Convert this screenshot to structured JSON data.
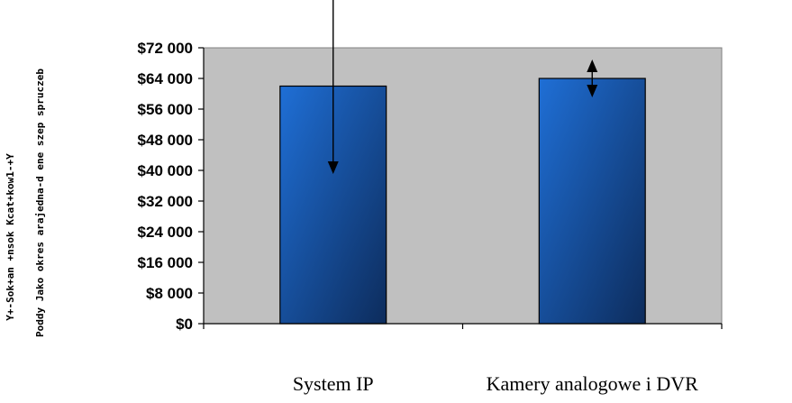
{
  "chart_data": {
    "type": "bar",
    "categories": [
      "System IP",
      "Kamery analogowe i DVR"
    ],
    "values": [
      62000,
      64000
    ],
    "error_bars": [
      {
        "upper": 111000,
        "lower": 40000
      },
      {
        "upper": 68000,
        "lower": 60000
      }
    ],
    "yticks": [
      "$0",
      "$8 000",
      "$16 000",
      "$24 000",
      "$32 000",
      "$40 000",
      "$48 000",
      "$56 000",
      "$64 000",
      "$72 000"
    ],
    "ylim": [
      0,
      72000
    ],
    "ylabel_left": "Y+-Sok+an +nsok Kcat+kow1-+Y",
    "ylabel_right": "Poddy Jako okres arajedna-d ene szep spruczeb",
    "grid": false,
    "legend": "none",
    "colors": {
      "plot_bg": "#c0c0c0",
      "bar_top": "#1f6fd6",
      "bar_bottom": "#0d2c5c"
    }
  }
}
